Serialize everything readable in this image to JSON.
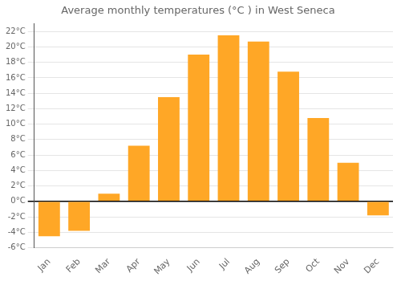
{
  "chart_data": {
    "type": "bar",
    "title": "Average monthly temperatures (°C ) in West Seneca",
    "categories": [
      "Jan",
      "Feb",
      "Mar",
      "Apr",
      "May",
      "Jun",
      "Jul",
      "Aug",
      "Sep",
      "Oct",
      "Nov",
      "Dec"
    ],
    "values": [
      -4.5,
      -3.8,
      1.0,
      7.2,
      13.5,
      19.0,
      21.5,
      20.7,
      16.8,
      10.8,
      5.0,
      -1.8
    ],
    "color": "#FFA726",
    "ylim": [
      -6,
      23
    ],
    "yticks": [
      {
        "value": -6,
        "label": "-6°C"
      },
      {
        "value": -4,
        "label": "-4°C"
      },
      {
        "value": -2,
        "label": "-2°C"
      },
      {
        "value": 0,
        "label": "0°C"
      },
      {
        "value": 2,
        "label": "2°C"
      },
      {
        "value": 4,
        "label": "4°C"
      },
      {
        "value": 6,
        "label": "6°C"
      },
      {
        "value": 8,
        "label": "8°C"
      },
      {
        "value": 10,
        "label": "10°C"
      },
      {
        "value": 12,
        "label": "12°C"
      },
      {
        "value": 14,
        "label": "14°C"
      },
      {
        "value": 16,
        "label": "16°C"
      },
      {
        "value": 18,
        "label": "18°C"
      },
      {
        "value": 20,
        "label": "20°C"
      },
      {
        "value": 22,
        "label": "22°C"
      }
    ],
    "grid": true
  }
}
